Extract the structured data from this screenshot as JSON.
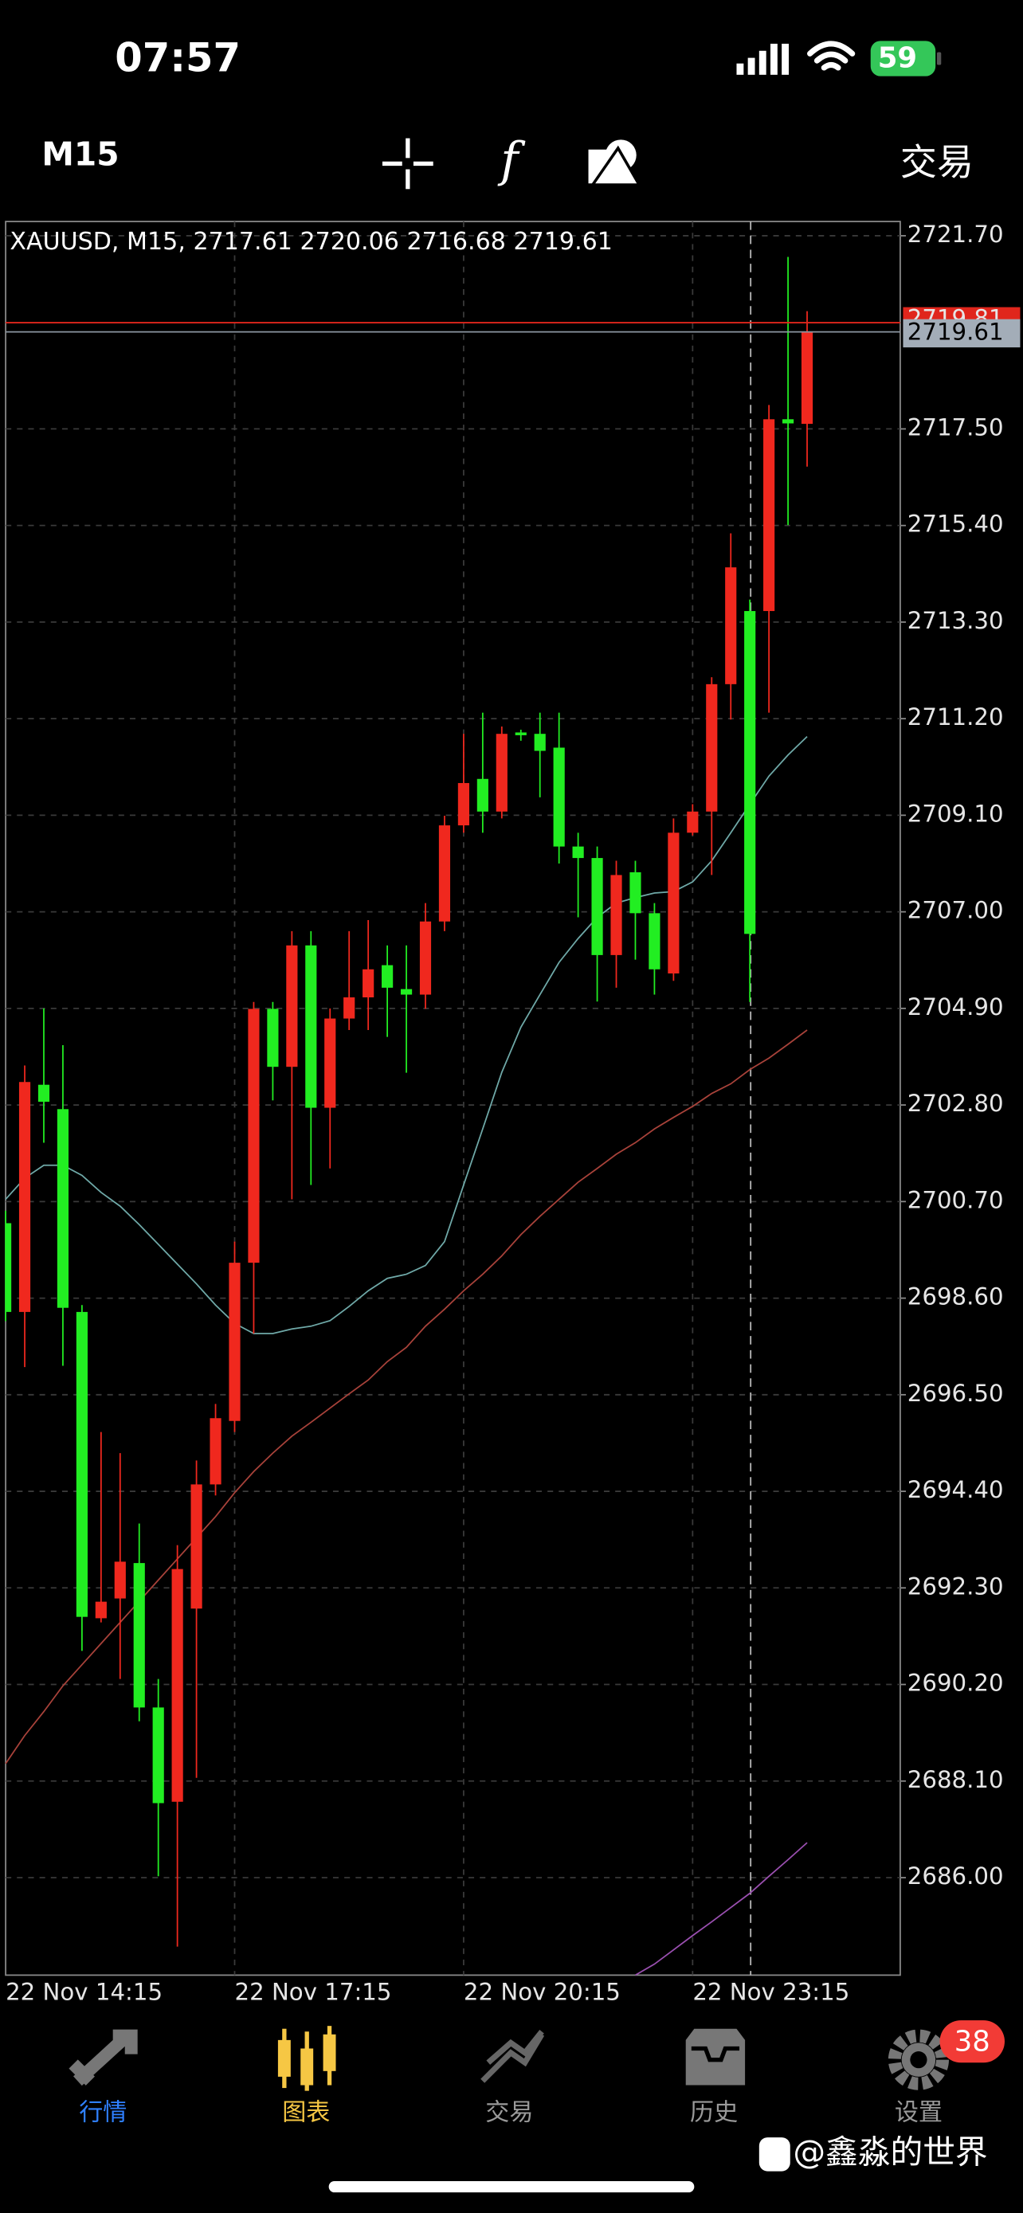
{
  "status_bar": {
    "time": "07:57",
    "battery": "59"
  },
  "toolbar": {
    "timeframe": "M15",
    "trade": "交易"
  },
  "chart_data": {
    "type": "candlestick",
    "title": "XAUUSD, M15, 2717.61 2720.06 2716.68 2719.61",
    "categories": [
      "22 Nov 14:15",
      null,
      null,
      null,
      null,
      null,
      null,
      null,
      null,
      null,
      null,
      null,
      "22 Nov 17:15",
      null,
      null,
      null,
      null,
      null,
      null,
      null,
      null,
      null,
      null,
      null,
      "22 Nov 20:15",
      null,
      null,
      null,
      null,
      null,
      null,
      null,
      null,
      null,
      null,
      null,
      "22 Nov 23:15",
      null,
      null,
      null,
      null,
      null,
      null
    ],
    "open": [
      2700.23,
      2698.3,
      2703.24,
      2702.71,
      2698.3,
      2691.64,
      2692.07,
      2692.84,
      2689.7,
      2687.65,
      2691.85,
      2694.55,
      2695.93,
      2699.37,
      2704.89,
      2703.63,
      2706.27,
      2702.74,
      2704.68,
      2705.14,
      2705.84,
      2705.32,
      2705.2,
      2706.79,
      2708.88,
      2709.89,
      2709.18,
      2710.9,
      2710.87,
      2710.57,
      2708.42,
      2708.17,
      2706.06,
      2707.86,
      2706.97,
      2705.66,
      2708.72,
      2709.18,
      2711.95,
      2713.54,
      2713.54,
      2717.71,
      2717.61
    ],
    "high": [
      2700.5,
      2703.66,
      2704.9,
      2704.1,
      2698.45,
      2695.69,
      2695.23,
      2693.7,
      2690.32,
      2693.23,
      2695.07,
      2696.3,
      2699.83,
      2705.04,
      2705.04,
      2706.58,
      2706.58,
      2704.9,
      2706.58,
      2706.82,
      2706.27,
      2706.27,
      2707.19,
      2709.09,
      2710.87,
      2711.33,
      2711.03,
      2710.96,
      2711.33,
      2711.33,
      2708.72,
      2708.42,
      2708.11,
      2708.11,
      2707.19,
      2709.03,
      2709.34,
      2712.1,
      2715.23,
      2713.79,
      2718.02,
      2721.24,
      2720.06
    ],
    "low": [
      2698.1,
      2697.1,
      2701.98,
      2697.13,
      2690.93,
      2691.55,
      2690.32,
      2689.4,
      2686.03,
      2684.5,
      2688.17,
      2694.31,
      2695.69,
      2697.83,
      2702.9,
      2700.75,
      2701.06,
      2701.42,
      2704.43,
      2704.43,
      2704.28,
      2703.5,
      2704.89,
      2706.58,
      2708.72,
      2708.72,
      2709.03,
      2710.72,
      2709.49,
      2708.05,
      2706.88,
      2705.05,
      2705.35,
      2705.96,
      2705.2,
      2705.5,
      2708.66,
      2707.8,
      2711.18,
      2705.04,
      2711.33,
      2715.41,
      2716.68
    ],
    "close": [
      2698.3,
      2703.3,
      2702.87,
      2698.39,
      2691.67,
      2692.0,
      2692.87,
      2689.7,
      2687.62,
      2692.71,
      2694.55,
      2695.99,
      2699.37,
      2704.89,
      2703.63,
      2706.27,
      2702.74,
      2704.68,
      2705.14,
      2705.75,
      2705.35,
      2705.2,
      2706.79,
      2708.88,
      2709.8,
      2709.18,
      2710.87,
      2710.84,
      2710.5,
      2708.42,
      2708.17,
      2706.06,
      2707.8,
      2706.97,
      2705.75,
      2708.72,
      2709.18,
      2711.95,
      2714.49,
      2706.52,
      2717.71,
      2717.62,
      2719.61
    ],
    "up_color": "#f0281e",
    "down_color": "#22ee22",
    "series": [
      {
        "color": "#6fa9a8",
        "values": [
          2700.75,
          2701.21,
          2701.49,
          2701.49,
          2701.27,
          2700.9,
          2700.6,
          2700.2,
          2699.77,
          2699.34,
          2698.91,
          2698.45,
          2698.05,
          2697.83,
          2697.83,
          2697.93,
          2697.99,
          2698.11,
          2698.42,
          2698.76,
          2699.03,
          2699.12,
          2699.31,
          2699.83,
          2701.06,
          2702.28,
          2703.51,
          2704.49,
          2705.2,
          2705.9,
          2706.42,
          2706.88,
          2707.19,
          2707.31,
          2707.41,
          2707.44,
          2707.65,
          2708.11,
          2708.72,
          2709.34,
          2709.95,
          2710.41,
          2710.81
        ]
      },
      {
        "color": "#a8423a",
        "values": [
          2688.48,
          2689.09,
          2689.61,
          2690.17,
          2690.63,
          2691.09,
          2691.55,
          2692.01,
          2692.47,
          2692.93,
          2693.39,
          2693.85,
          2694.37,
          2694.83,
          2695.23,
          2695.6,
          2695.9,
          2696.21,
          2696.52,
          2696.82,
          2697.22,
          2697.53,
          2697.99,
          2698.36,
          2698.76,
          2699.12,
          2699.52,
          2699.98,
          2700.38,
          2700.75,
          2701.12,
          2701.42,
          2701.73,
          2701.98,
          2702.28,
          2702.53,
          2702.77,
          2703.05,
          2703.26,
          2703.57,
          2703.82,
          2704.12,
          2704.43
        ]
      },
      {
        "color": "#9a4fb0",
        "values": [
          null,
          null,
          null,
          null,
          null,
          null,
          null,
          null,
          null,
          null,
          null,
          null,
          null,
          null,
          null,
          null,
          null,
          null,
          null,
          null,
          null,
          null,
          null,
          null,
          null,
          null,
          null,
          null,
          null,
          null,
          null,
          null,
          null,
          2683.88,
          2684.12,
          2684.43,
          2684.74,
          2685.04,
          2685.35,
          2685.66,
          2686.03,
          2686.39,
          2686.76
        ]
      }
    ],
    "ylim": [
      2683.88,
      2722.01
    ],
    "yticks": [
      {
        "value": 2721.7,
        "label": "2721.70"
      },
      {
        "value": 2717.5,
        "label": "2717.50"
      },
      {
        "value": 2715.4,
        "label": "2715.40"
      },
      {
        "value": 2713.3,
        "label": "2713.30"
      },
      {
        "value": 2711.2,
        "label": "2711.20"
      },
      {
        "value": 2709.1,
        "label": "2709.10"
      },
      {
        "value": 2707,
        "label": "2707.00"
      },
      {
        "value": 2704.9,
        "label": "2704.90"
      },
      {
        "value": 2702.8,
        "label": "2702.80"
      },
      {
        "value": 2700.7,
        "label": "2700.70"
      },
      {
        "value": 2698.6,
        "label": "2698.60"
      },
      {
        "value": 2696.5,
        "label": "2696.50"
      },
      {
        "value": 2694.4,
        "label": "2694.40"
      },
      {
        "value": 2692.3,
        "label": "2692.30"
      },
      {
        "value": 2690.2,
        "label": "2690.20"
      },
      {
        "value": 2688.1,
        "label": "2688.10"
      },
      {
        "value": 2686,
        "label": "2686.00"
      }
    ],
    "grid": true,
    "ask": 2719.81,
    "bid": 2719.61
  },
  "tab_bar": {
    "tabs": [
      "行情",
      "图表",
      "交易",
      "历史",
      "设置"
    ],
    "badge": "38"
  },
  "watermark": "@鑫淼的世界"
}
